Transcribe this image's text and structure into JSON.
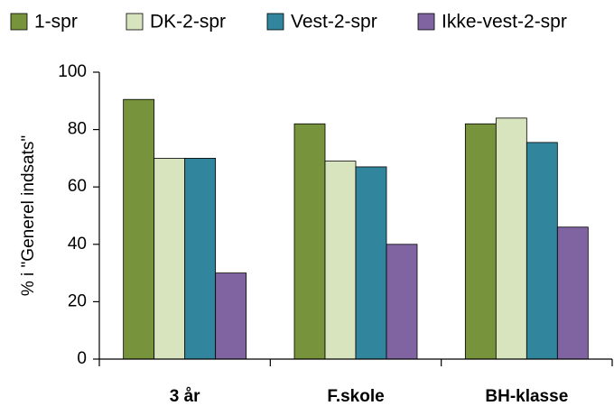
{
  "chart_data": {
    "type": "bar",
    "ylabel": "% i \"Generel indsats\"",
    "categories": [
      "3 år",
      "F.skole",
      "BH-klasse"
    ],
    "series": [
      {
        "name": "1-spr",
        "color": "#77933c",
        "values": [
          90.5,
          82,
          82
        ]
      },
      {
        "name": "DK-2-spr",
        "color": "#d7e4bd",
        "values": [
          70,
          69,
          84
        ]
      },
      {
        "name": "Vest-2-spr",
        "color": "#31859c",
        "values": [
          70,
          67,
          75.5
        ]
      },
      {
        "name": "Ikke-vest-2-spr",
        "color": "#8064a2",
        "values": [
          30,
          40,
          46
        ]
      }
    ],
    "ylim": [
      0,
      100
    ],
    "yticks": [
      0,
      20,
      40,
      60,
      80,
      100
    ],
    "grid": false,
    "legend": "top"
  }
}
